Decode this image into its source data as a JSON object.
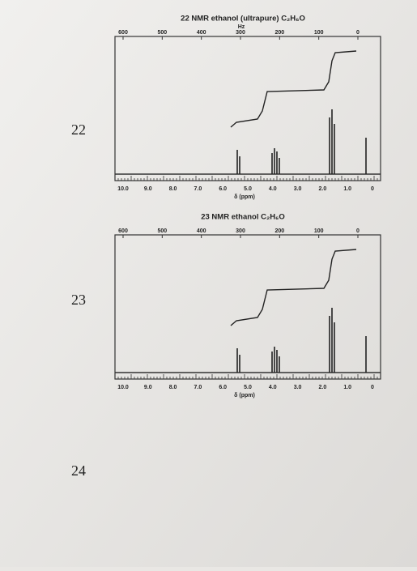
{
  "questions": [
    "22",
    "23",
    "24"
  ],
  "spectra": [
    {
      "title": "22 NMR ethanol (ultrapure) C₂H₆O",
      "unit": "Hz",
      "top_scale": [
        "600",
        "500",
        "400",
        "300",
        "200",
        "100",
        "0"
      ],
      "bottom_scale": [
        "10.0",
        "9.0",
        "8.0",
        "7.0",
        "6.0",
        "5.0",
        "4.0",
        "3.0",
        "2.0",
        "1.0",
        "0"
      ],
      "axis_label": "δ (ppm)"
    },
    {
      "title": "23 NMR ethanol C₂H₆O",
      "top_scale": [
        "600",
        "500",
        "400",
        "300",
        "200",
        "100",
        "0"
      ],
      "bottom_scale": [
        "10.0",
        "9.0",
        "8.0",
        "7.0",
        "6.0",
        "5.0",
        "4.0",
        "3.0",
        "2.0",
        "1.0",
        "0"
      ],
      "axis_label": "δ (ppm)"
    }
  ]
}
